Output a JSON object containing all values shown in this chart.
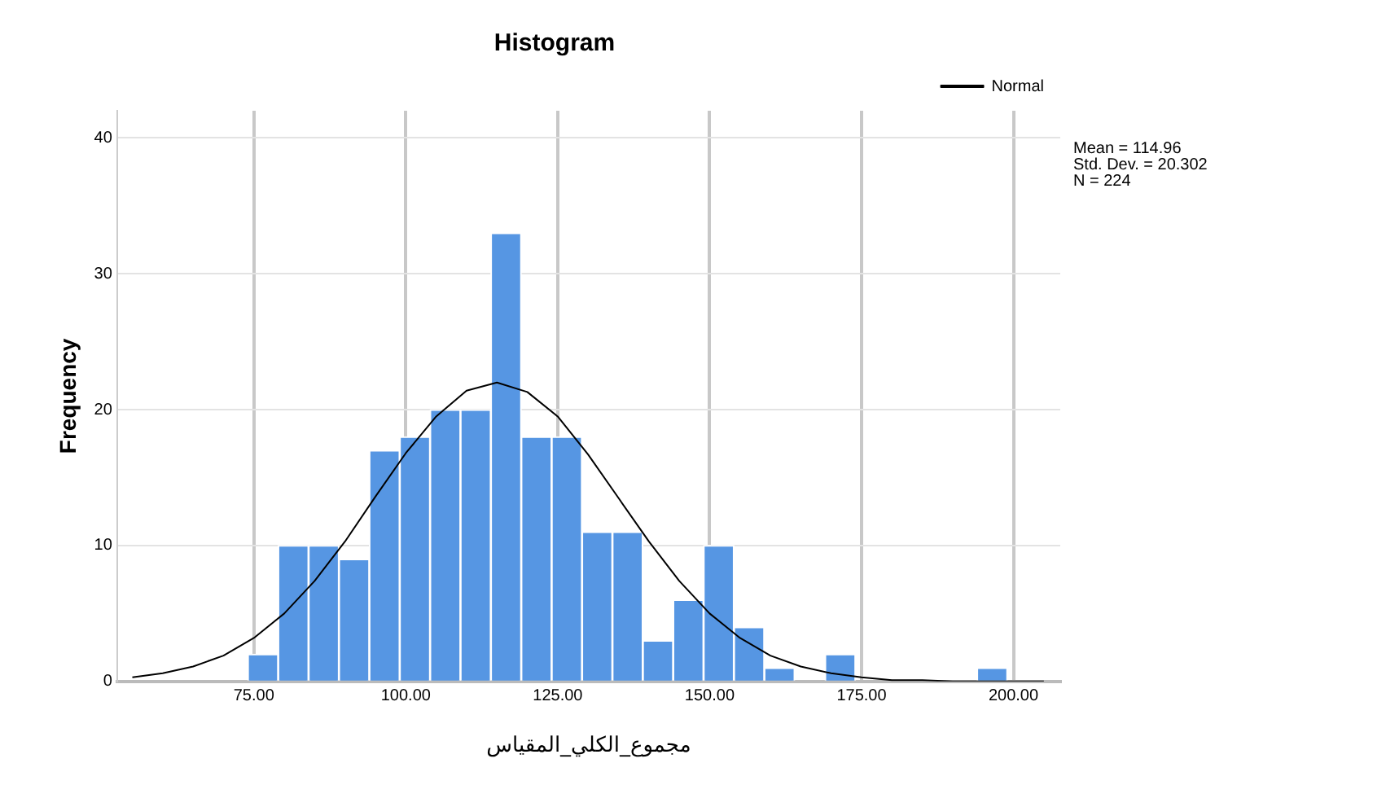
{
  "chart_data": {
    "type": "histogram",
    "title": "Histogram",
    "xlabel": "مجموع_الكلي_المقياس",
    "ylabel": "Frequency",
    "bins": [
      74,
      79,
      84,
      89,
      94,
      99,
      104,
      109,
      114,
      119,
      124,
      129,
      134,
      139,
      144,
      149,
      154,
      159,
      164,
      169,
      174,
      179,
      184,
      189,
      194,
      199
    ],
    "values": [
      2,
      10,
      10,
      9,
      17,
      18,
      20,
      20,
      33,
      18,
      18,
      11,
      11,
      3,
      6,
      10,
      4,
      1,
      0,
      2,
      0,
      0,
      0,
      0,
      1
    ],
    "color": "#5696e3",
    "series": [
      {
        "name": "Normal",
        "type": "line",
        "color": "#000000",
        "x": [
          55,
          60,
          65,
          70,
          75,
          80,
          85,
          90,
          95,
          100,
          105,
          110,
          115,
          120,
          125,
          130,
          135,
          140,
          145,
          150,
          155,
          160,
          165,
          170,
          175,
          180,
          185,
          190,
          195,
          200,
          205
        ],
        "values": [
          0.3,
          0.6,
          1.1,
          1.9,
          3.2,
          5.0,
          7.4,
          10.3,
          13.6,
          16.8,
          19.5,
          21.4,
          22.0,
          21.3,
          19.5,
          16.7,
          13.5,
          10.3,
          7.4,
          5.0,
          3.2,
          1.9,
          1.1,
          0.6,
          0.3,
          0.1,
          0.1,
          0,
          0,
          0,
          0
        ]
      }
    ],
    "xlim": [
      52.5,
      207.7
    ],
    "xticks": [
      {
        "value": 75,
        "label": "75.00"
      },
      {
        "value": 100,
        "label": "100.00"
      },
      {
        "value": 125,
        "label": "125.00"
      },
      {
        "value": 150,
        "label": "150.00"
      },
      {
        "value": 175,
        "label": "175.00"
      },
      {
        "value": 200,
        "label": "200.00"
      }
    ],
    "ylim": [
      0,
      42
    ],
    "yticks": [
      0,
      10,
      20,
      30,
      40
    ],
    "grid": true,
    "legend": "top right",
    "annotations": [
      "Mean = 114.96",
      "Std. Dev. = 20.302",
      "N = 224"
    ]
  }
}
